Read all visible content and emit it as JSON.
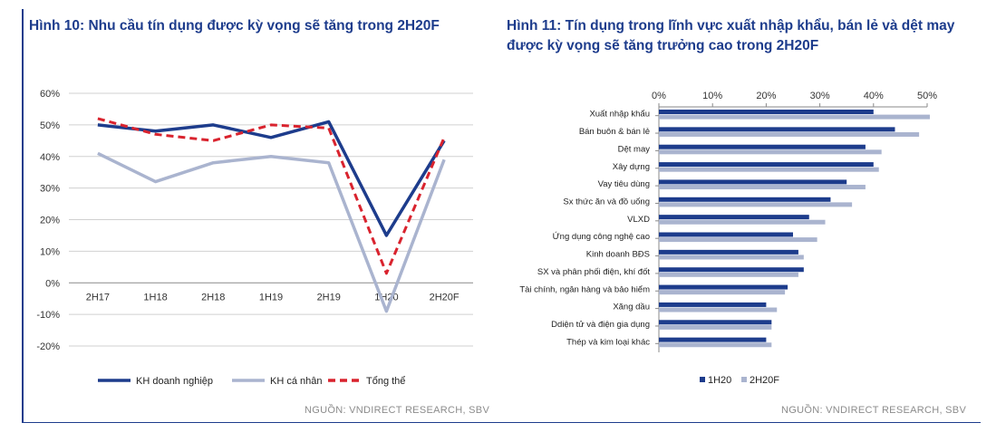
{
  "left": {
    "title": "Hình 10: Nhu cầu tín dụng được kỳ vọng sẽ tăng trong 2H20F",
    "source": "NGUỒN: VNDIRECT RESEARCH, SBV"
  },
  "right": {
    "title": "Hình 11: Tín dụng trong lĩnh vực xuất nhập khẩu, bán lẻ và dệt may được kỳ vọng sẽ tăng trưởng cao trong 2H20F",
    "source": "NGUỒN: VNDIRECT RESEARCH, SBV"
  },
  "chart_data": [
    {
      "type": "line",
      "categories": [
        "2H17",
        "1H18",
        "2H18",
        "1H19",
        "2H19",
        "1H20",
        "2H20F"
      ],
      "y_tick_labels": [
        "60%",
        "50%",
        "40%",
        "30%",
        "20%",
        "10%",
        "0%",
        "-10%",
        "-20%"
      ],
      "ylim": [
        -20,
        60
      ],
      "y_unit": "%",
      "grid": "horizontal",
      "legend_position": "bottom",
      "series": [
        {
          "name": "KH doanh nghiệp",
          "color": "#1d3c8c",
          "style": "solid",
          "values": [
            50,
            48,
            50,
            46,
            51,
            15,
            45
          ]
        },
        {
          "name": "KH cá nhân",
          "color": "#aab4cf",
          "style": "solid",
          "values": [
            41,
            32,
            38,
            40,
            38,
            -9,
            39
          ]
        },
        {
          "name": "Tổng thể",
          "color": "#d9232e",
          "style": "dashed",
          "values": [
            52,
            47,
            45,
            50,
            49,
            3,
            46
          ]
        }
      ]
    },
    {
      "type": "bar",
      "orientation": "horizontal",
      "x_tick_labels": [
        "0%",
        "10%",
        "20%",
        "30%",
        "40%",
        "50%"
      ],
      "xlim": [
        0,
        50
      ],
      "x_axis_position": "top",
      "legend_position": "bottom-left",
      "categories": [
        "Xuất nhập khẩu",
        "Bán buôn & bán lẻ",
        "Dệt may",
        "Xây dựng",
        "Vay tiêu dùng",
        "Sx thức ăn và đồ uống",
        "VLXD",
        "Ứng dụng công nghệ cao",
        "Kinh doanh BĐS",
        "SX và phân phối điện, khí đốt",
        "Tài chính, ngân hàng và bảo hiểm",
        "Xăng dầu",
        "Ddiện tử và điện gia dụng",
        "Thép và kim loại khác"
      ],
      "series": [
        {
          "name": "1H20",
          "color": "#1d3c8c",
          "values": [
            40,
            44,
            38.5,
            40,
            35,
            32,
            28,
            25,
            26,
            27,
            24,
            20,
            21,
            20
          ]
        },
        {
          "name": "2H20F",
          "color": "#aab4cf",
          "values": [
            50.5,
            48.5,
            41.5,
            41,
            38.5,
            36,
            31,
            29.5,
            27,
            26,
            23.5,
            22,
            21,
            21
          ]
        }
      ]
    }
  ]
}
